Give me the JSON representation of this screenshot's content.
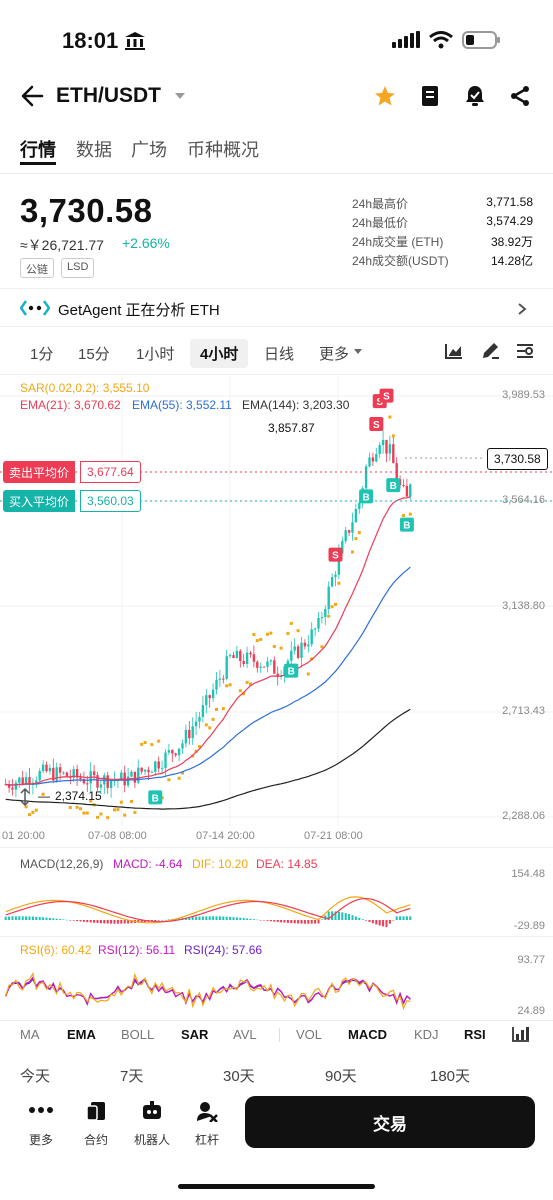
{
  "status": {
    "time": "18:01"
  },
  "header": {
    "pair": "ETH/USDT"
  },
  "tabs": [
    "行情",
    "数据",
    "广场",
    "币种概况"
  ],
  "ticker": {
    "price": "3,730.58",
    "cny": "≈￥26,721.77",
    "change": "+2.66%",
    "tags": [
      "公链",
      "LSD"
    ]
  },
  "stats": [
    {
      "label": "24h最高价",
      "value": "3,771.58"
    },
    {
      "label": "24h最低价",
      "value": "3,574.29"
    },
    {
      "label": "24h成交量 (ETH)",
      "value": "38.92万"
    },
    {
      "label": "24h成交额(USDT)",
      "value": "14.28亿"
    }
  ],
  "agent": {
    "text": "GetAgent 正在分析 ETH"
  },
  "timeframes": [
    "1分",
    "15分",
    "1小时",
    "4小时",
    "日线",
    "更多"
  ],
  "chart": {
    "legend_sar": "SAR(0.02,0.2): 3,555.10",
    "legend_ema21": "EMA(21): 3,670.62",
    "legend_ema55": "EMA(55): 3,552.11",
    "legend_ema144": "EMA(144): 3,203.30",
    "high_marker": "3,857.87",
    "low_marker": "2,374.15",
    "sell_avg_label": "卖出平均价",
    "sell_avg_value": "3,677.64",
    "buy_avg_label": "买入平均价",
    "buy_avg_value": "3,560.03",
    "last_price": "3,730.58",
    "y_ticks": [
      "3,989.53",
      "3,564.16",
      "3,138.80",
      "2,713.43",
      "2,288.06"
    ],
    "x_ticks": [
      "01 20:00",
      "07-08 08:00",
      "07-14 20:00",
      "07-21 08:00"
    ],
    "colors": {
      "up": "#1ec3b4",
      "down": "#ee3c55",
      "ema21": "#ee3c55",
      "ema55": "#2a6fdb",
      "ema144": "#222222",
      "sar": "#f3a712"
    }
  },
  "macd": {
    "title": "MACD(12,26,9)",
    "macd": "MACD: -4.64",
    "dif": "DIF: 10.20",
    "dea": "DEA: 14.85",
    "y_ticks": [
      "154.48",
      "-29.89"
    ]
  },
  "rsi": {
    "rsi6": "RSI(6): 60.42",
    "rsi12": "RSI(12): 56.11",
    "rsi24": "RSI(24): 57.66",
    "y_ticks": [
      "93.77",
      "24.89"
    ]
  },
  "indicator_tabs": [
    "MA",
    "EMA",
    "BOLL",
    "SAR",
    "AVL",
    "VOL",
    "MACD",
    "KDJ",
    "RSI"
  ],
  "ranges": [
    "今天",
    "7天",
    "30天",
    "90天",
    "180天"
  ],
  "bottom_nav": [
    "更多",
    "合约",
    "机器人",
    "杠杆"
  ],
  "trade_button": "交易"
}
